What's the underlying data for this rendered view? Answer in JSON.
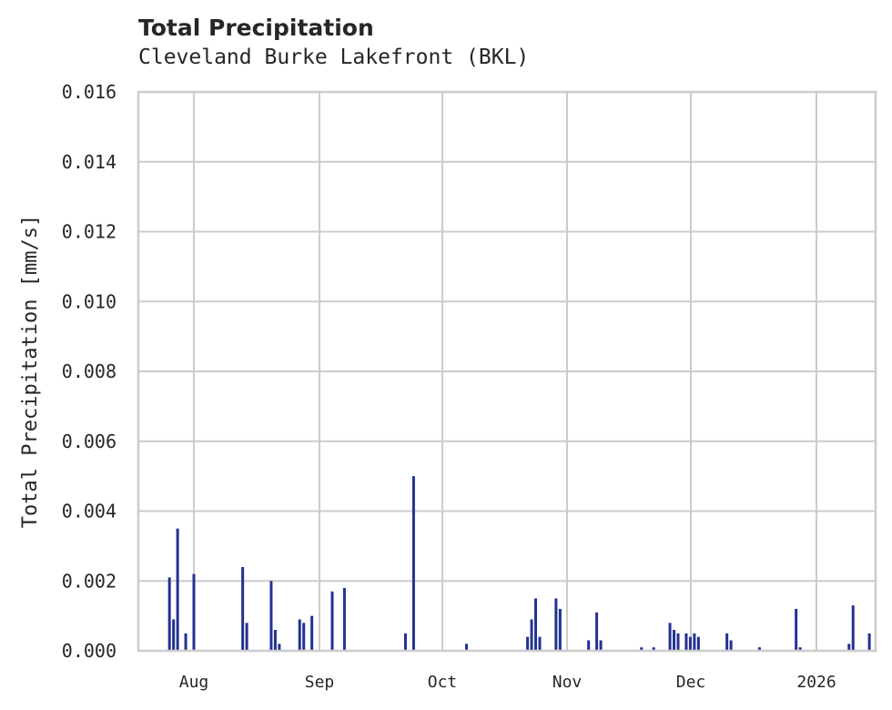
{
  "header": {
    "title": "Total Precipitation",
    "subtitle": "Cleveland Burke Lakefront (BKL)"
  },
  "chart_data": {
    "type": "bar",
    "title": "Total Precipitation",
    "subtitle": "Cleveland Burke Lakefront (BKL)",
    "xlabel": "",
    "ylabel": "Total Precipitation [mm/s]",
    "ylim": [
      0,
      0.016
    ],
    "yticks": [
      "0.000",
      "0.002",
      "0.004",
      "0.006",
      "0.008",
      "0.010",
      "0.012",
      "0.014",
      "0.016"
    ],
    "xticks": [
      "Aug",
      "Sep",
      "Oct",
      "Nov",
      "Dec",
      "2026"
    ],
    "grid": true,
    "color": "#233292",
    "x_unit": "date (2025-07-18 to 2026-01-15 approx.)",
    "x": [
      "2025-07-26",
      "2025-07-27",
      "2025-07-28",
      "2025-07-30",
      "2025-08-01",
      "2025-08-13",
      "2025-08-14",
      "2025-08-20",
      "2025-08-21",
      "2025-08-22",
      "2025-08-27",
      "2025-08-28",
      "2025-08-30",
      "2025-09-04",
      "2025-09-07",
      "2025-09-22",
      "2025-09-24",
      "2025-10-07",
      "2025-10-22",
      "2025-10-23",
      "2025-10-24",
      "2025-10-25",
      "2025-10-29",
      "2025-10-30",
      "2025-11-06",
      "2025-11-08",
      "2025-11-09",
      "2025-11-19",
      "2025-11-22",
      "2025-11-26",
      "2025-11-27",
      "2025-11-28",
      "2025-11-30",
      "2025-12-01",
      "2025-12-02",
      "2025-12-03",
      "2025-12-10",
      "2025-12-11",
      "2025-12-18",
      "2025-12-27",
      "2025-12-28",
      "2026-01-09",
      "2026-01-10",
      "2026-01-14"
    ],
    "values": [
      0.0021,
      0.0009,
      0.0035,
      0.0005,
      0.0022,
      0.0024,
      0.0008,
      0.002,
      0.0006,
      0.0002,
      0.0009,
      0.0008,
      0.001,
      0.0017,
      0.0018,
      0.0005,
      0.005,
      0.0002,
      0.0004,
      0.0009,
      0.0015,
      0.0004,
      0.0015,
      0.0012,
      0.0003,
      0.0011,
      0.0003,
      0.0001,
      0.0001,
      0.0008,
      0.0006,
      0.0005,
      0.0005,
      0.0004,
      0.0005,
      0.0004,
      0.0005,
      0.0003,
      0.0001,
      0.0012,
      0.0001,
      0.0002,
      0.0013,
      0.0005
    ]
  },
  "axes": {
    "ylabel": "Total Precipitation [mm/s]",
    "yticks": [
      "0.000",
      "0.002",
      "0.004",
      "0.006",
      "0.008",
      "0.010",
      "0.012",
      "0.014",
      "0.016"
    ],
    "xticks": [
      "Aug",
      "Sep",
      "Oct",
      "Nov",
      "Dec",
      "2026"
    ]
  }
}
